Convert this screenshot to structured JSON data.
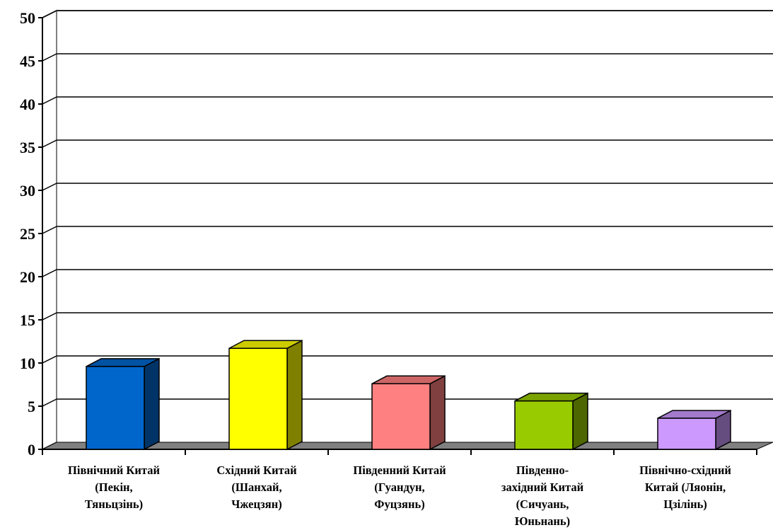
{
  "chart_data": {
    "type": "bar",
    "title": "",
    "xlabel": "",
    "ylabel": "",
    "ylim": [
      0,
      50
    ],
    "yticks": [
      0,
      5,
      10,
      15,
      20,
      25,
      30,
      35,
      40,
      45,
      50
    ],
    "grid": true,
    "legend": "none",
    "three_d": true,
    "categories": [
      [
        "Північний Китай",
        "(Пекін,",
        "Тяньцзінь)"
      ],
      [
        "Східний Китай",
        "(Шанхай,",
        "Чжецзян)"
      ],
      [
        "Південний Китай",
        "(Гуандун,",
        "Фуцзянь)"
      ],
      [
        "Південно-",
        "західний Китай",
        "(Сичуань,",
        "Юньнань)"
      ],
      [
        "Північно-східний",
        "Китай (Ляонін,",
        "Цзілінь)"
      ]
    ],
    "values": [
      9.6,
      11.7,
      7.6,
      5.6,
      3.6
    ],
    "bar_colors": [
      {
        "front": "#0066cc",
        "top": "#0052a3",
        "side": "#003366"
      },
      {
        "front": "#ffff00",
        "top": "#cccc00",
        "side": "#808000"
      },
      {
        "front": "#ff8080",
        "top": "#cc6666",
        "side": "#804040"
      },
      {
        "front": "#99cc00",
        "top": "#7aa300",
        "side": "#4d6600"
      },
      {
        "front": "#cc99ff",
        "top": "#a37acc",
        "side": "#664d80"
      }
    ],
    "floor_color": "#808080",
    "grid_color": "#000000"
  }
}
